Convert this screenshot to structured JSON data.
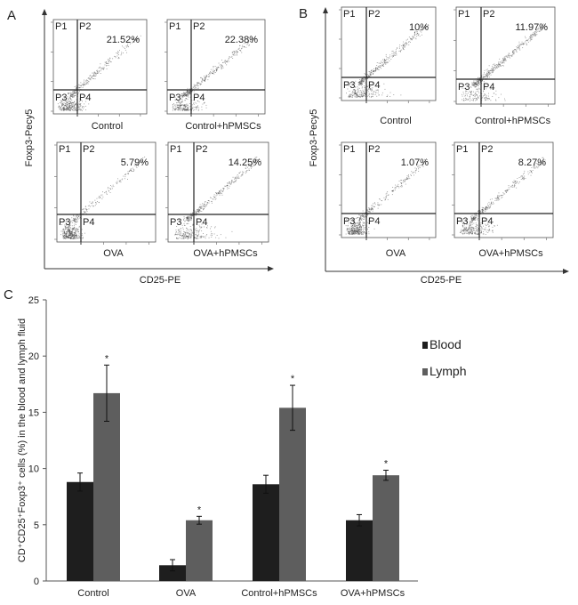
{
  "panels": {
    "A": {
      "label": "A",
      "ylabel": "Foxp3-Pecy5",
      "xlabel": "CD25-PE",
      "plots": [
        {
          "name": "Control",
          "percent": "21.52%",
          "quadrants": [
            "P1",
            "P2",
            "P3",
            "P4"
          ]
        },
        {
          "name": "Control+hPMSCs",
          "percent": "22.38%",
          "quadrants": [
            "P1",
            "P2",
            "P3",
            "P4"
          ]
        },
        {
          "name": "OVA",
          "percent": "5.79%",
          "quadrants": [
            "P1",
            "P2",
            "P3",
            "P4"
          ]
        },
        {
          "name": "OVA+hPMSCs",
          "percent": "14.25%",
          "quadrants": [
            "P1",
            "P2",
            "P3",
            "P4"
          ]
        }
      ]
    },
    "B": {
      "label": "B",
      "ylabel": "Foxp3-Pecy5",
      "xlabel": "CD25-PE",
      "plots": [
        {
          "name": "Control",
          "percent": "10%",
          "quadrants": [
            "P1",
            "P2",
            "P3",
            "P4"
          ]
        },
        {
          "name": "Control+hPMSCs",
          "percent": "11.97%",
          "quadrants": [
            "P1",
            "P2",
            "P3",
            "P4"
          ]
        },
        {
          "name": "OVA",
          "percent": "1.07%",
          "quadrants": [
            "P1",
            "P2",
            "P3",
            "P4"
          ]
        },
        {
          "name": "OVA+hPMSCs",
          "percent": "8.27%",
          "quadrants": [
            "P1",
            "P2",
            "P3",
            "P4"
          ]
        }
      ]
    },
    "C": {
      "label": "C"
    }
  },
  "chart_data": {
    "type": "bar",
    "title": "",
    "xlabel": "",
    "ylabel": "CD⁺CD25⁺Foxp3⁺ cells (%) in the blood and lymph fluid",
    "ylim": [
      0,
      25
    ],
    "yticks": [
      0,
      5,
      10,
      15,
      20,
      25
    ],
    "grid": false,
    "legend": "right",
    "categories": [
      "Control",
      "OVA",
      "Control+hPMSCs",
      "OVA+hPMSCs"
    ],
    "series": [
      {
        "name": "Blood",
        "color": "#1e1e1e",
        "values": [
          8.8,
          1.4,
          8.6,
          5.4
        ],
        "errors": [
          0.8,
          0.5,
          0.8,
          0.5
        ]
      },
      {
        "name": "Lymph",
        "color": "#5e5e5e",
        "values": [
          16.7,
          5.4,
          15.4,
          9.4
        ],
        "errors": [
          2.5,
          0.35,
          2.0,
          0.45
        ]
      }
    ],
    "annotations": [
      {
        "series": "Lymph",
        "category": "Control",
        "text": "*"
      },
      {
        "series": "Lymph",
        "category": "OVA",
        "text": "*"
      },
      {
        "series": "Lymph",
        "category": "Control+hPMSCs",
        "text": "*"
      },
      {
        "series": "Lymph",
        "category": "OVA+hPMSCs",
        "text": "*"
      }
    ]
  }
}
